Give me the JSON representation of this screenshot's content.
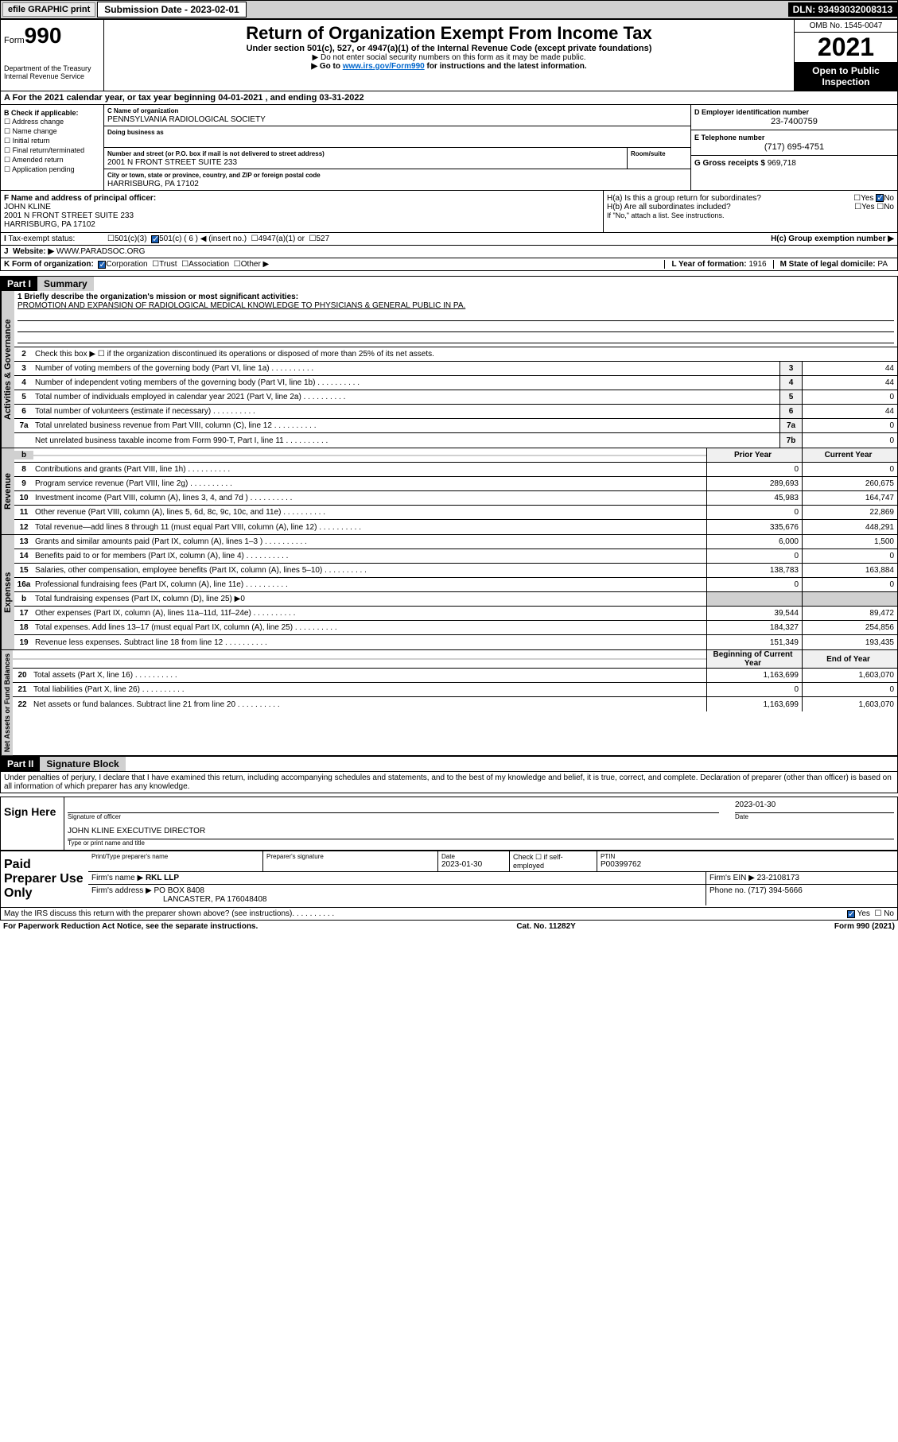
{
  "topbar": {
    "efile": "efile GRAPHIC print",
    "subdate_lbl": "Submission Date - 2023-02-01",
    "dln": "DLN: 93493032008313"
  },
  "header": {
    "form_prefix": "Form",
    "form_num": "990",
    "dept": "Department of the Treasury Internal Revenue Service",
    "title": "Return of Organization Exempt From Income Tax",
    "sub1": "Under section 501(c), 527, or 4947(a)(1) of the Internal Revenue Code (except private foundations)",
    "sub2": "▶ Do not enter social security numbers on this form as it may be made public.",
    "sub3_pre": "▶ Go to ",
    "sub3_link": "www.irs.gov/Form990",
    "sub3_post": " for instructions and the latest information.",
    "omb": "OMB No. 1545-0047",
    "year": "2021",
    "insp": "Open to Public Inspection"
  },
  "A": {
    "text": "For the 2021 calendar year, or tax year beginning 04-01-2021 , and ending 03-31-2022"
  },
  "B": {
    "title": "B Check if applicable:",
    "items": [
      "Address change",
      "Name change",
      "Initial return",
      "Final return/terminated",
      "Amended return",
      "Application pending"
    ]
  },
  "C": {
    "name_lbl": "C Name of organization",
    "name": "PENNSYLVANIA RADIOLOGICAL SOCIETY",
    "dba_lbl": "Doing business as",
    "dba": "",
    "addr_lbl": "Number and street (or P.O. box if mail is not delivered to street address)",
    "room_lbl": "Room/suite",
    "addr": "2001 N FRONT STREET SUITE 233",
    "city_lbl": "City or town, state or province, country, and ZIP or foreign postal code",
    "city": "HARRISBURG, PA  17102"
  },
  "D": {
    "lbl": "D Employer identification number",
    "val": "23-7400759"
  },
  "E": {
    "lbl": "E Telephone number",
    "val": "(717) 695-4751"
  },
  "G": {
    "lbl": "G Gross receipts $",
    "val": "969,718"
  },
  "F": {
    "lbl": "F Name and address of principal officer:",
    "name": "JOHN KLINE",
    "addr1": "2001 N FRONT STREET SUITE 233",
    "addr2": "HARRISBURG, PA  17102"
  },
  "H": {
    "a": "H(a) Is this a group return for subordinates?",
    "b": "H(b) Are all subordinates included?",
    "b_note": "If \"No,\" attach a list. See instructions.",
    "c": "H(c) Group exemption number ▶",
    "yes": "Yes",
    "no": "No"
  },
  "I": {
    "lbl": "Tax-exempt status:",
    "opts": [
      "501(c)(3)",
      "501(c) ( 6 ) ◀ (insert no.)",
      "4947(a)(1) or",
      "527"
    ]
  },
  "J": {
    "lbl": "Website: ▶",
    "val": "WWW.PARADSOC.ORG"
  },
  "K": {
    "lbl": "K Form of organization:",
    "opts": [
      "Corporation",
      "Trust",
      "Association",
      "Other ▶"
    ]
  },
  "L": {
    "lbl": "L Year of formation:",
    "val": "1916"
  },
  "M": {
    "lbl": "M State of legal domicile:",
    "val": "PA"
  },
  "part1": {
    "hdr": "Part I",
    "title": "Summary",
    "mission_lbl": "1  Briefly describe the organization's mission or most significant activities:",
    "mission": "PROMOTION AND EXPANSION OF RADIOLOGICAL MEDICAL KNOWLEDGE TO PHYSICIANS & GENERAL PUBLIC IN PA.",
    "line2": "Check this box ▶ ☐ if the organization discontinued its operations or disposed of more than 25% of its net assets.",
    "gov": [
      {
        "n": "3",
        "t": "Number of voting members of the governing body (Part VI, line 1a)",
        "b": "3",
        "v": "44"
      },
      {
        "n": "4",
        "t": "Number of independent voting members of the governing body (Part VI, line 1b)",
        "b": "4",
        "v": "44"
      },
      {
        "n": "5",
        "t": "Total number of individuals employed in calendar year 2021 (Part V, line 2a)",
        "b": "5",
        "v": "0"
      },
      {
        "n": "6",
        "t": "Total number of volunteers (estimate if necessary)",
        "b": "6",
        "v": "44"
      },
      {
        "n": "7a",
        "t": "Total unrelated business revenue from Part VIII, column (C), line 12",
        "b": "7a",
        "v": "0"
      },
      {
        "n": "",
        "t": "Net unrelated business taxable income from Form 990-T, Part I, line 11",
        "b": "7b",
        "v": "0"
      }
    ],
    "col_prior": "Prior Year",
    "col_curr": "Current Year",
    "rev": [
      {
        "n": "8",
        "t": "Contributions and grants (Part VIII, line 1h)",
        "p": "0",
        "c": "0"
      },
      {
        "n": "9",
        "t": "Program service revenue (Part VIII, line 2g)",
        "p": "289,693",
        "c": "260,675"
      },
      {
        "n": "10",
        "t": "Investment income (Part VIII, column (A), lines 3, 4, and 7d )",
        "p": "45,983",
        "c": "164,747"
      },
      {
        "n": "11",
        "t": "Other revenue (Part VIII, column (A), lines 5, 6d, 8c, 9c, 10c, and 11e)",
        "p": "0",
        "c": "22,869"
      },
      {
        "n": "12",
        "t": "Total revenue—add lines 8 through 11 (must equal Part VIII, column (A), line 12)",
        "p": "335,676",
        "c": "448,291"
      }
    ],
    "exp": [
      {
        "n": "13",
        "t": "Grants and similar amounts paid (Part IX, column (A), lines 1–3 )",
        "p": "6,000",
        "c": "1,500"
      },
      {
        "n": "14",
        "t": "Benefits paid to or for members (Part IX, column (A), line 4)",
        "p": "0",
        "c": "0"
      },
      {
        "n": "15",
        "t": "Salaries, other compensation, employee benefits (Part IX, column (A), lines 5–10)",
        "p": "138,783",
        "c": "163,884"
      },
      {
        "n": "16a",
        "t": "Professional fundraising fees (Part IX, column (A), line 11e)",
        "p": "0",
        "c": "0"
      },
      {
        "n": "b",
        "t": "Total fundraising expenses (Part IX, column (D), line 25) ▶0",
        "p": "",
        "c": "",
        "shade": true
      },
      {
        "n": "17",
        "t": "Other expenses (Part IX, column (A), lines 11a–11d, 11f–24e)",
        "p": "39,544",
        "c": "89,472"
      },
      {
        "n": "18",
        "t": "Total expenses. Add lines 13–17 (must equal Part IX, column (A), line 25)",
        "p": "184,327",
        "c": "254,856"
      },
      {
        "n": "19",
        "t": "Revenue less expenses. Subtract line 18 from line 12",
        "p": "151,349",
        "c": "193,435"
      }
    ],
    "col_beg": "Beginning of Current Year",
    "col_end": "End of Year",
    "net": [
      {
        "n": "20",
        "t": "Total assets (Part X, line 16)",
        "p": "1,163,699",
        "c": "1,603,070"
      },
      {
        "n": "21",
        "t": "Total liabilities (Part X, line 26)",
        "p": "0",
        "c": "0"
      },
      {
        "n": "22",
        "t": "Net assets or fund balances. Subtract line 21 from line 20",
        "p": "1,163,699",
        "c": "1,603,070"
      }
    ],
    "tabs": {
      "gov": "Activities & Governance",
      "rev": "Revenue",
      "exp": "Expenses",
      "net": "Net Assets or Fund Balances"
    }
  },
  "part2": {
    "hdr": "Part II",
    "title": "Signature Block",
    "decl": "Under penalties of perjury, I declare that I have examined this return, including accompanying schedules and statements, and to the best of my knowledge and belief, it is true, correct, and complete. Declaration of preparer (other than officer) is based on all information of which preparer has any knowledge.",
    "sign_here": "Sign Here",
    "sig_officer": "Signature of officer",
    "sig_date": "2023-01-30",
    "date_lbl": "Date",
    "officer": "JOHN KLINE  EXECUTIVE DIRECTOR",
    "officer_lbl": "Type or print name and title",
    "paid": "Paid Preparer Use Only",
    "prep_name_lbl": "Print/Type preparer's name",
    "prep_sig_lbl": "Preparer's signature",
    "prep_date_lbl": "Date",
    "prep_date": "2023-01-30",
    "self_emp": "Check ☐ if self-employed",
    "ptin_lbl": "PTIN",
    "ptin": "P00399762",
    "firm_name_lbl": "Firm's name  ▶",
    "firm_name": "RKL LLP",
    "firm_ein_lbl": "Firm's EIN ▶",
    "firm_ein": "23-2108173",
    "firm_addr_lbl": "Firm's address ▶",
    "firm_addr1": "PO BOX 8408",
    "firm_addr2": "LANCASTER, PA  176048408",
    "phone_lbl": "Phone no.",
    "phone": "(717) 394-5666",
    "discuss": "May the IRS discuss this return with the preparer shown above? (see instructions)"
  },
  "footer": {
    "pra": "For Paperwork Reduction Act Notice, see the separate instructions.",
    "cat": "Cat. No. 11282Y",
    "form": "Form 990 (2021)"
  }
}
